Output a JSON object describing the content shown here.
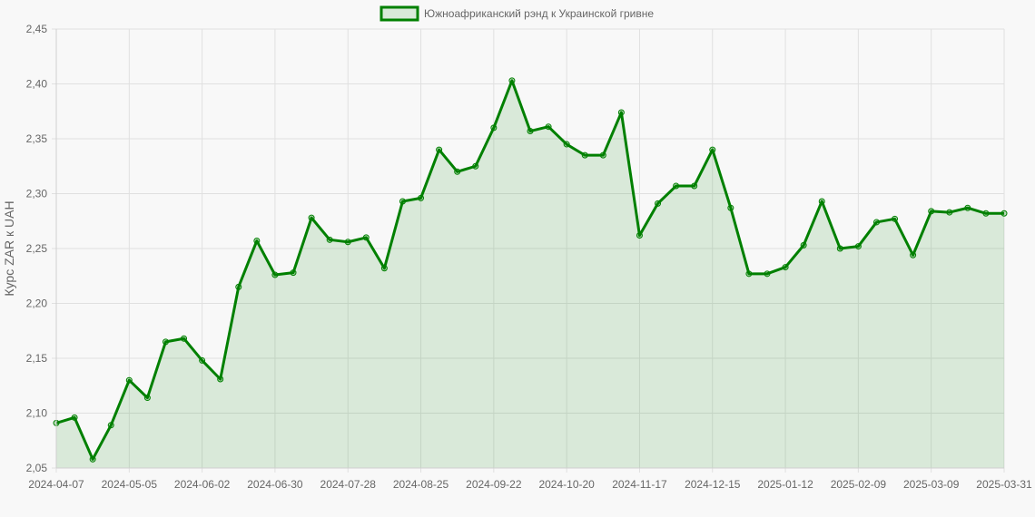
{
  "chart_data": {
    "type": "area",
    "legend": {
      "label": "Южноафриканский рэнд к Украинской гривне",
      "position": "top"
    },
    "ylabel": "Курс ZAR к UAH",
    "xlabel": "",
    "ylim": [
      2.05,
      2.45
    ],
    "y_ticks": [
      "2,05",
      "2,10",
      "2,15",
      "2,20",
      "2,25",
      "2,30",
      "2,35",
      "2,40",
      "2,45"
    ],
    "x_ticks": [
      "2024-04-07",
      "2024-05-05",
      "2024-06-02",
      "2024-06-30",
      "2024-07-28",
      "2024-08-25",
      "2024-09-22",
      "2024-10-20",
      "2024-11-17",
      "2024-12-15",
      "2025-01-12",
      "2025-02-09",
      "2025-03-09",
      "2025-03-31"
    ],
    "grid": true,
    "colors": {
      "line": "#008000",
      "fill": "rgba(0,128,0,0.12)",
      "point_fill": "rgba(0,128,0,0.25)",
      "grid": "#e0e0e0"
    },
    "series": [
      {
        "name": "Южноафриканский рэнд к Украинской гривне",
        "values": [
          2.091,
          2.096,
          2.058,
          2.089,
          2.13,
          2.114,
          2.165,
          2.168,
          2.148,
          2.131,
          2.215,
          2.257,
          2.226,
          2.228,
          2.278,
          2.258,
          2.256,
          2.26,
          2.232,
          2.293,
          2.296,
          2.34,
          2.32,
          2.325,
          2.36,
          2.403,
          2.357,
          2.361,
          2.345,
          2.335,
          2.335,
          2.374,
          2.262,
          2.291,
          2.307,
          2.307,
          2.34,
          2.287,
          2.227,
          2.227,
          2.233,
          2.253,
          2.293,
          2.25,
          2.252,
          2.274,
          2.277,
          2.244,
          2.284,
          2.283,
          2.287,
          2.282,
          2.282
        ]
      }
    ]
  }
}
